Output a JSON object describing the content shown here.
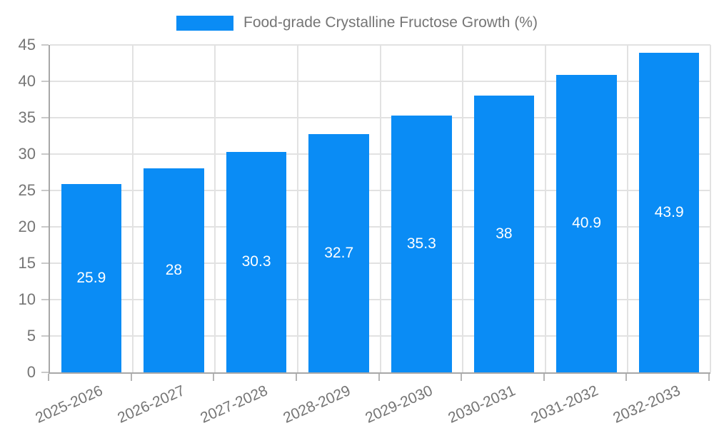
{
  "chart_data": {
    "type": "bar",
    "title": "Food-grade Crystalline Fructose Growth (%)",
    "categories": [
      "2025-2026",
      "2026-2027",
      "2027-2028",
      "2028-2029",
      "2029-2030",
      "2030-2031",
      "2031-2032",
      "2032-2033"
    ],
    "values": [
      25.9,
      28,
      30.3,
      32.7,
      35.3,
      38,
      40.9,
      43.9
    ],
    "value_labels": [
      "25.9",
      "28",
      "30.3",
      "32.7",
      "35.3",
      "38",
      "40.9",
      "43.9"
    ],
    "ylim": [
      0,
      45
    ],
    "ytick_step": 5,
    "yticks": [
      0,
      5,
      10,
      15,
      20,
      25,
      30,
      35,
      40,
      45
    ],
    "grid": true,
    "legend": {
      "label": "Food-grade Crystalline Fructose Growth (%)",
      "position": "top-center"
    },
    "colors": {
      "bar": "#0a8cf5",
      "value_label": "#ffffff",
      "axis_text": "#757575",
      "grid_line": "#e2e2e2",
      "axis_line": "#a8a8a8",
      "background": "#ffffff"
    }
  }
}
